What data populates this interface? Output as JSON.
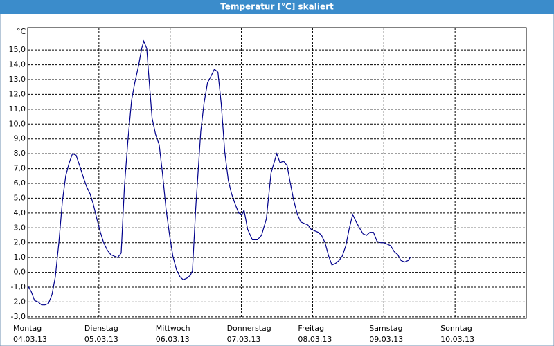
{
  "chart_data": {
    "type": "line",
    "title": "Temperatur [°C] skaliert",
    "y_label": "°C",
    "x": [
      0,
      1.2,
      2.3,
      3.5,
      4.7,
      5.8,
      7.0,
      8.2,
      9.3,
      10.5,
      11.7,
      12.8,
      14.0,
      15.1,
      16.3,
      17.5,
      18.6,
      19.8,
      21.0,
      22.1,
      23.3,
      24.5,
      25.6,
      26.8,
      28.0,
      29.1,
      30.3,
      31.5,
      32.6,
      33.8,
      35.0,
      36.1,
      37.3,
      38.4,
      39.1,
      40.1,
      40.8,
      41.9,
      43.1,
      44.3,
      45.4,
      46.6,
      47.8,
      48.9,
      50.1,
      51.3,
      52.4,
      53.6,
      54.8,
      55.5,
      56.6,
      58.3,
      59.4,
      60.6,
      61.7,
      62.9,
      64.1,
      65.2,
      66.4,
      67.6,
      68.7,
      69.9,
      71.1,
      72.2,
      72.9,
      74.1,
      75.7,
      77.4,
      78.8,
      80.4,
      82.0,
      83.9,
      85.0,
      86.2,
      87.4,
      88.5,
      89.7,
      90.9,
      92.0,
      93.2,
      94.4,
      95.5,
      96.7,
      97.9,
      99.0,
      100.2,
      101.4,
      102.5,
      103.7,
      104.9,
      106.0,
      107.2,
      108.3,
      109.5,
      110.7,
      111.8,
      113.0,
      114.2,
      115.3,
      116.5,
      117.7,
      118.8,
      120.0,
      121.2,
      122.3,
      123.5,
      124.7,
      125.8,
      127.0,
      128.2,
      128.9
    ],
    "series": [
      {
        "color": "#00008b",
        "values": [
          -0.9,
          -1.3,
          -1.9,
          -2.0,
          -2.2,
          -2.2,
          -2.1,
          -1.5,
          -0.3,
          2.0,
          4.8,
          6.5,
          7.4,
          8.0,
          7.9,
          7.2,
          6.5,
          5.8,
          5.3,
          4.6,
          3.6,
          2.7,
          2.0,
          1.5,
          1.2,
          1.1,
          1.0,
          1.3,
          5.8,
          9.0,
          11.6,
          12.8,
          13.9,
          15.1,
          15.6,
          15.1,
          13.2,
          10.4,
          9.3,
          8.6,
          6.7,
          4.3,
          2.5,
          1.1,
          0.2,
          -0.3,
          -0.5,
          -0.4,
          -0.2,
          0.1,
          4.3,
          9.5,
          11.4,
          12.8,
          13.2,
          13.7,
          13.5,
          11.4,
          8.1,
          6.2,
          5.3,
          4.6,
          4.0,
          3.9,
          4.2,
          2.9,
          2.2,
          2.2,
          2.5,
          3.6,
          6.7,
          8.0,
          7.4,
          7.5,
          7.2,
          6.0,
          4.8,
          3.9,
          3.4,
          3.3,
          3.2,
          2.9,
          2.8,
          2.7,
          2.5,
          2.0,
          1.1,
          0.5,
          0.6,
          0.8,
          1.1,
          1.8,
          2.9,
          3.9,
          3.4,
          3.0,
          2.6,
          2.5,
          2.7,
          2.7,
          2.1,
          2.0,
          2.0,
          1.9,
          1.8,
          1.4,
          1.2,
          0.8,
          0.7,
          0.8,
          1.0
        ]
      }
    ],
    "xlim": [
      0,
      168
    ],
    "xticks": [
      {
        "value": 0,
        "label": "Montag"
      },
      {
        "value": 24,
        "label": "Dienstag"
      },
      {
        "value": 48,
        "label": "Mittwoch"
      },
      {
        "value": 72,
        "label": "Donnerstag"
      },
      {
        "value": 96,
        "label": "Freitag"
      },
      {
        "value": 120,
        "label": "Samstag"
      },
      {
        "value": 144,
        "label": "Sonntag"
      }
    ],
    "xtick_dates": [
      "04.03.13",
      "05.03.13",
      "06.03.13",
      "07.03.13",
      "08.03.13",
      "09.03.13",
      "10.03.13"
    ],
    "ylim": [
      -3.1,
      16.5
    ],
    "yticks": [
      {
        "value": -3,
        "label": "-3,0"
      },
      {
        "value": -2,
        "label": "-2,0"
      },
      {
        "value": -1,
        "label": "-1,0"
      },
      {
        "value": 0,
        "label": "0,0"
      },
      {
        "value": 1,
        "label": "1,0"
      },
      {
        "value": 2,
        "label": "2,0"
      },
      {
        "value": 3,
        "label": "3,0"
      },
      {
        "value": 4,
        "label": "4,0"
      },
      {
        "value": 5,
        "label": "5,0"
      },
      {
        "value": 6,
        "label": "6,0"
      },
      {
        "value": 7,
        "label": "7,0"
      },
      {
        "value": 8,
        "label": "8,0"
      },
      {
        "value": 9,
        "label": "9,0"
      },
      {
        "value": 10,
        "label": "10,0"
      },
      {
        "value": 11,
        "label": "11,0"
      },
      {
        "value": 12,
        "label": "12,0"
      },
      {
        "value": 13,
        "label": "13,0"
      },
      {
        "value": 14,
        "label": "14,0"
      },
      {
        "value": 15,
        "label": "15,0"
      }
    ],
    "grid": true
  }
}
